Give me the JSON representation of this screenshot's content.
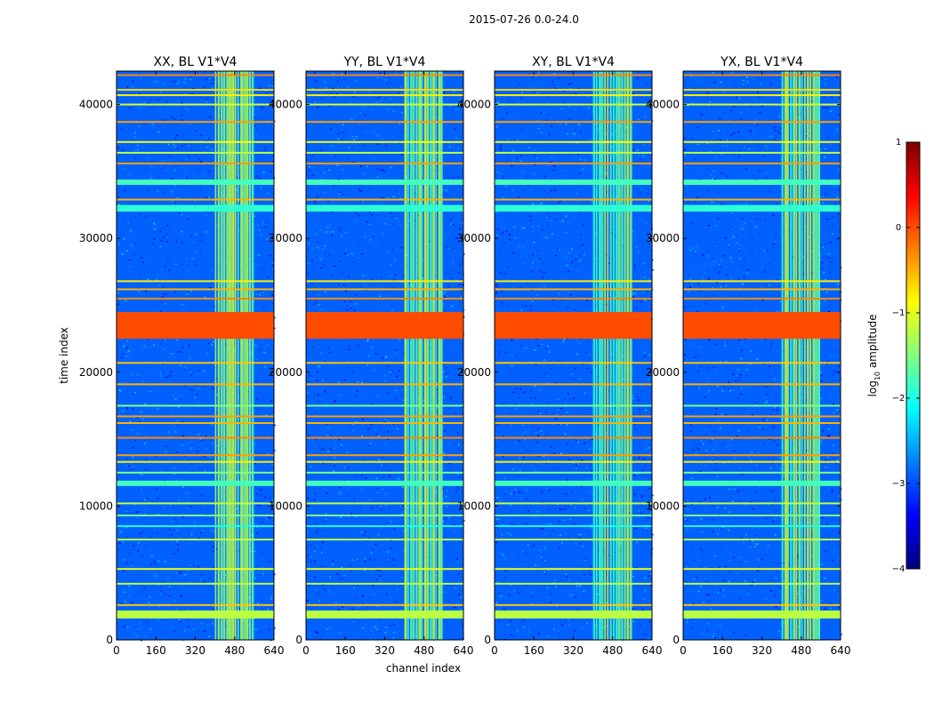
{
  "figure": {
    "suptitle": "2015-07-26 0.0-24.0",
    "colors": {
      "cmap": [
        "#00007f",
        "#0000ff",
        "#007fff",
        "#00ffff",
        "#7fff7f",
        "#ffff00",
        "#ff7f00",
        "#ff0000",
        "#7f0000"
      ]
    }
  },
  "chart_data": [
    {
      "type": "heatmap",
      "title": "XX, BL V1*V4",
      "xlabel": "",
      "ylabel": "time index",
      "xlim": [
        0,
        640
      ],
      "ylim": [
        0,
        42500
      ],
      "xticks": [
        "0",
        "160",
        "320",
        "480",
        "640"
      ],
      "yticks": [
        "0",
        "10000",
        "20000",
        "30000",
        "40000"
      ],
      "xtick_values": [
        0,
        160,
        320,
        480,
        640
      ],
      "ytick_values": [
        0,
        10000,
        20000,
        30000,
        40000
      ]
    },
    {
      "type": "heatmap",
      "title": "YY, BL V1*V4",
      "xlabel": "channel index",
      "ylabel": "",
      "xlim": [
        0,
        640
      ],
      "ylim": [
        0,
        42500
      ],
      "xticks": [
        "0",
        "160",
        "320",
        "480",
        "640"
      ],
      "yticks": [
        "0",
        "10000",
        "20000",
        "30000",
        "40000"
      ],
      "xtick_values": [
        0,
        160,
        320,
        480,
        640
      ],
      "ytick_values": [
        0,
        10000,
        20000,
        30000,
        40000
      ]
    },
    {
      "type": "heatmap",
      "title": "XY, BL V1*V4",
      "xlabel": "",
      "ylabel": "",
      "xlim": [
        0,
        640
      ],
      "ylim": [
        0,
        42500
      ],
      "xticks": [
        "0",
        "160",
        "320",
        "480",
        "640"
      ],
      "yticks": [
        "0",
        "10000",
        "20000",
        "30000",
        "40000"
      ],
      "xtick_values": [
        0,
        160,
        320,
        480,
        640
      ],
      "ytick_values": [
        0,
        10000,
        20000,
        30000,
        40000
      ]
    },
    {
      "type": "heatmap",
      "title": "YX, BL V1*V4",
      "xlabel": "",
      "ylabel": "",
      "xlim": [
        0,
        640
      ],
      "ylim": [
        0,
        42500
      ],
      "xticks": [
        "0",
        "160",
        "320",
        "480",
        "640"
      ],
      "yticks": [
        "0",
        "10000",
        "20000",
        "30000",
        "40000"
      ],
      "xtick_values": [
        0,
        160,
        320,
        480,
        640
      ],
      "ytick_values": [
        0,
        10000,
        20000,
        30000,
        40000
      ]
    }
  ],
  "colorbar": {
    "label": "log",
    "label_sub": "10",
    "label_tail": " amplitude",
    "range": [
      -4,
      1
    ],
    "ticks": [
      "1",
      "0",
      "−1",
      "−2",
      "−3",
      "−4"
    ],
    "tick_values": [
      1,
      0,
      -1,
      -2,
      -3,
      -4
    ]
  },
  "features": {
    "background_level": -2.9,
    "rfi_column_band": {
      "channels": [
        400,
        560
      ],
      "level": -1.5
    },
    "flagged_time_bands": [
      {
        "t": [
          22500,
          24500
        ],
        "level": 0.0
      },
      {
        "t": [
          1600,
          2200
        ],
        "level": -1.2
      },
      {
        "t": [
          32000,
          32500
        ],
        "level": -1.9
      },
      {
        "t": [
          11500,
          11900
        ],
        "level": -1.8
      },
      {
        "t": [
          34000,
          34400
        ],
        "level": -1.8
      }
    ],
    "flagged_time_lines": [
      {
        "t": 2600,
        "level": -0.6
      },
      {
        "t": 4200,
        "level": -1.2
      },
      {
        "t": 5300,
        "level": -1.0
      },
      {
        "t": 7500,
        "level": -1.2
      },
      {
        "t": 8500,
        "level": -2.0
      },
      {
        "t": 9300,
        "level": -1.5
      },
      {
        "t": 10200,
        "level": -1.2
      },
      {
        "t": 12500,
        "level": -1.5
      },
      {
        "t": 13300,
        "level": -0.8
      },
      {
        "t": 13800,
        "level": -0.4
      },
      {
        "t": 15100,
        "level": -0.3
      },
      {
        "t": 16200,
        "level": -0.5
      },
      {
        "t": 16700,
        "level": -0.4
      },
      {
        "t": 17500,
        "level": -1.5
      },
      {
        "t": 19100,
        "level": -0.5
      },
      {
        "t": 20700,
        "level": -0.6
      },
      {
        "t": 25500,
        "level": -0.3
      },
      {
        "t": 26200,
        "level": -0.5
      },
      {
        "t": 26800,
        "level": -0.8
      },
      {
        "t": 32900,
        "level": -0.5
      },
      {
        "t": 35600,
        "level": -0.4
      },
      {
        "t": 36400,
        "level": -1.2
      },
      {
        "t": 37200,
        "level": -0.9
      },
      {
        "t": 38700,
        "level": -0.4
      },
      {
        "t": 40000,
        "level": -1.1
      },
      {
        "t": 40700,
        "level": -0.8
      },
      {
        "t": 41100,
        "level": -0.7
      },
      {
        "t": 42200,
        "level": -0.3
      }
    ]
  }
}
